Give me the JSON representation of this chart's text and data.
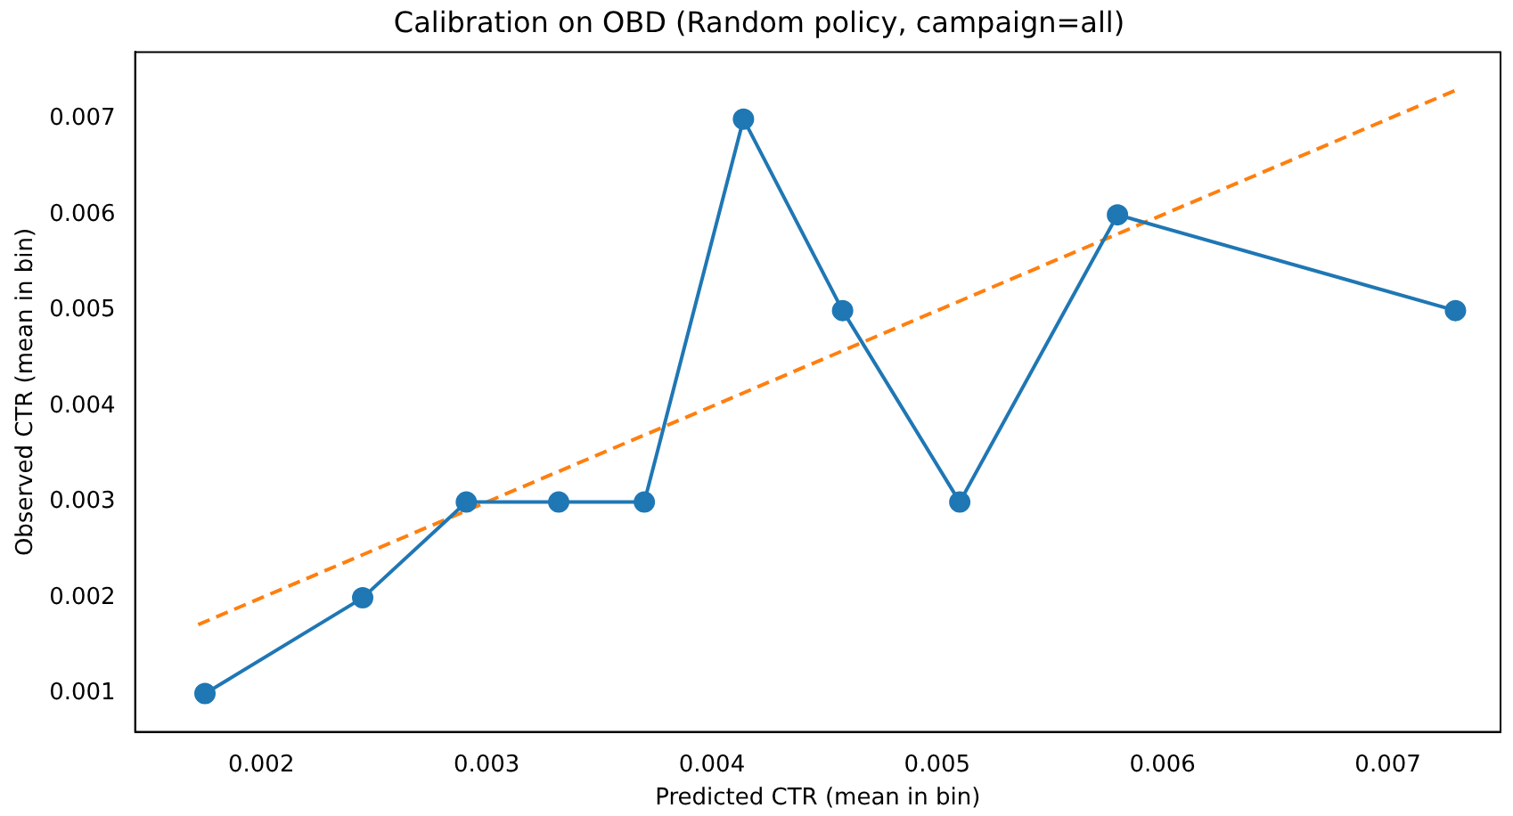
{
  "chart_data": {
    "type": "line",
    "title": "Calibration on OBD (Random policy, campaign=all)",
    "xlabel": "Predicted CTR (mean in bin)",
    "ylabel": "Observed CTR (mean in bin)",
    "xlim": [
      0.00144,
      0.0075
    ],
    "ylim": [
      0.0006,
      0.0077
    ],
    "xticks": [
      0.002,
      0.003,
      0.004,
      0.005,
      0.006,
      0.007
    ],
    "yticks": [
      0.001,
      0.002,
      0.003,
      0.004,
      0.005,
      0.006,
      0.007
    ],
    "grid": false,
    "legend": false,
    "series": [
      {
        "color": "#1f77b4",
        "marker": "circle",
        "line_style": "solid",
        "x": [
          0.00175,
          0.00245,
          0.00291,
          0.00332,
          0.0037,
          0.00414,
          0.00458,
          0.0051,
          0.0058,
          0.0073
        ],
        "values": [
          0.001,
          0.002,
          0.003,
          0.003,
          0.003,
          0.007,
          0.005,
          0.003,
          0.006,
          0.005
        ]
      },
      {
        "color": "#ff7f0e",
        "marker": "none",
        "line_style": "dashed",
        "x": [
          0.00172,
          0.0073
        ],
        "values": [
          0.00172,
          0.0073
        ]
      }
    ]
  }
}
